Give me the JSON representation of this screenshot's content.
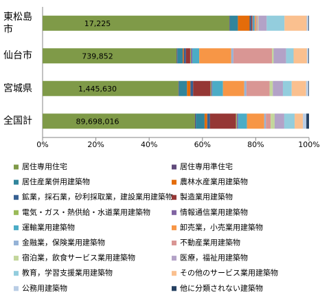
{
  "chart_data": {
    "type": "stacked-bar-horizontal-100",
    "categories": [
      "東松島市",
      "仙台市",
      "宮城県",
      "全国計"
    ],
    "totals": [
      17225,
      739852,
      1445630,
      89698016
    ],
    "totals_labels": [
      "17,225",
      "739,852",
      "1,445,630",
      "89,698,016"
    ],
    "series": [
      {
        "name": "居住専用住宅",
        "color": "#7f9a48",
        "values": [
          70.1,
          50.3,
          51.0,
          57.2
        ]
      },
      {
        "name": "居住専用準住宅",
        "color": "#604a7b",
        "values": [
          0.2,
          0.3,
          0.2,
          0.3
        ]
      },
      {
        "name": "居住産業併用建築物",
        "color": "#31859c",
        "values": [
          3.0,
          2.0,
          3.0,
          3.3
        ]
      },
      {
        "name": "農林水産業用建築物",
        "color": "#e46c0a",
        "values": [
          4.4,
          0.4,
          1.3,
          1.0
        ]
      },
      {
        "name": "鉱業，採石業，砂利採取業，建設業用建築物",
        "color": "#376092",
        "values": [
          0.6,
          0.8,
          1.0,
          1.0
        ]
      },
      {
        "name": "製造業用建築物",
        "color": "#953735",
        "values": [
          0.4,
          1.6,
          6.5,
          9.8
        ]
      },
      {
        "name": "電気・ガス・熱供給・水道業用建築物",
        "color": "#9bbb59",
        "values": [
          0.1,
          0.3,
          0.3,
          0.3
        ]
      },
      {
        "name": "情報通信業用建築物",
        "color": "#8064a2",
        "values": [
          0.2,
          0.5,
          0.4,
          0.5
        ]
      },
      {
        "name": "運輸業用建築物",
        "color": "#4bacc6",
        "values": [
          0.6,
          2.6,
          4.0,
          3.3
        ]
      },
      {
        "name": "卸売業，小売業用建築物",
        "color": "#f79646",
        "values": [
          0.5,
          12.0,
          8.0,
          6.5
        ]
      },
      {
        "name": "金融業，保険業用建築物",
        "color": "#95b3d7",
        "values": [
          0.2,
          0.8,
          0.8,
          0.6
        ]
      },
      {
        "name": "不動産業用建築物",
        "color": "#d99694",
        "values": [
          0.4,
          14.5,
          8.7,
          1.8
        ]
      },
      {
        "name": "宿泊業，飲食サービス業用建築物",
        "color": "#c3d69b",
        "values": [
          0.3,
          0.6,
          1.2,
          1.5
        ]
      },
      {
        "name": "医療，福祉用建築物",
        "color": "#b3a2c7",
        "values": [
          3.1,
          4.7,
          3.8,
          3.6
        ]
      },
      {
        "name": "教育，学習支援業用建築物",
        "color": "#93cddd",
        "values": [
          6.7,
          2.8,
          3.3,
          3.9
        ]
      },
      {
        "name": "その他のサービス業用建築物",
        "color": "#fac08f",
        "values": [
          8.3,
          5.0,
          5.4,
          3.1
        ]
      },
      {
        "name": "公務用建築物",
        "color": "#b9cde5",
        "values": [
          0.7,
          0.6,
          0.9,
          1.3
        ]
      },
      {
        "name": "他に分類されない建築物",
        "color": "#254061",
        "values": [
          0.2,
          0.2,
          0.2,
          1.0
        ]
      }
    ],
    "xlim": [
      0,
      100
    ],
    "xticks": [
      {
        "value": 0,
        "label": "0%"
      },
      {
        "value": 20,
        "label": "20%"
      },
      {
        "value": 40,
        "label": "40%"
      },
      {
        "value": 60,
        "label": "60%"
      },
      {
        "value": 80,
        "label": "80%"
      },
      {
        "value": 100,
        "label": "100%"
      }
    ],
    "legend": "bottom"
  }
}
